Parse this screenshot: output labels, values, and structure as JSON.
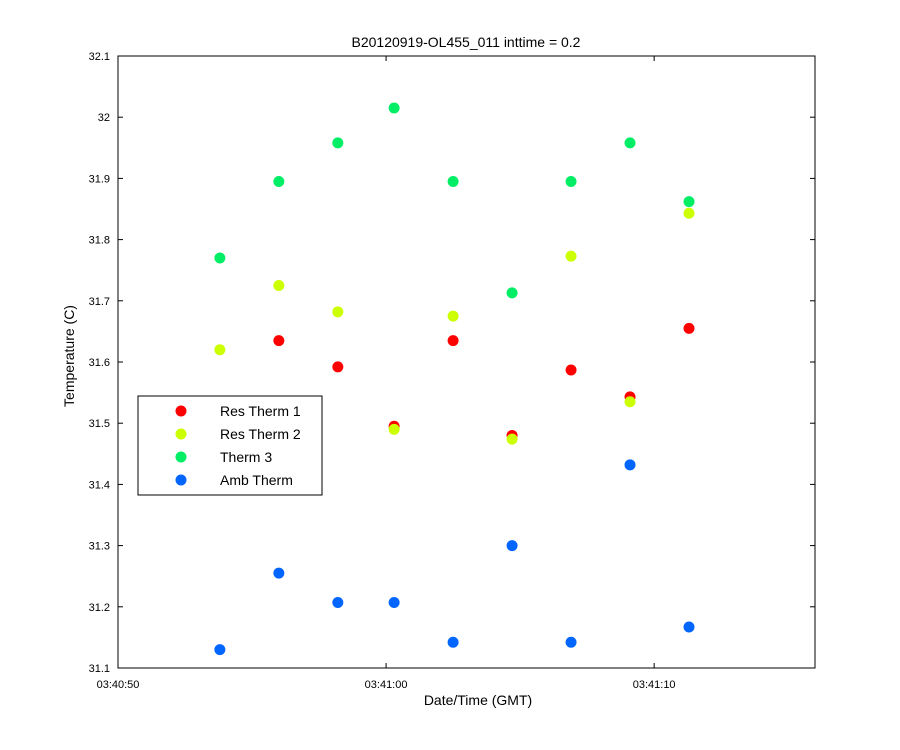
{
  "chart_data": {
    "type": "scatter",
    "title": "B20120919-OL455_011 inttime = 0.2",
    "xlabel": "Date/Time (GMT)",
    "ylabel": "Temperature (C)",
    "x_axis": {
      "unit": "seconds after 03:40:50 GMT",
      "range": [
        0,
        26
      ],
      "ticks": [
        0,
        10,
        20
      ],
      "tick_labels": [
        "03:40:50",
        "03:41:00",
        "03:41:10"
      ]
    },
    "y_axis": {
      "range": [
        31.1,
        32.1
      ],
      "ticks": [
        31.1,
        31.2,
        31.3,
        31.4,
        31.5,
        31.6,
        31.7,
        31.8,
        31.9,
        32.0,
        32.1
      ],
      "tick_labels": [
        "31.1",
        "31.2",
        "31.3",
        "31.4",
        "31.5",
        "31.6",
        "31.7",
        "31.8",
        "31.9",
        "32",
        "32.1"
      ]
    },
    "grid": false,
    "legend_position": "middle-left",
    "series": [
      {
        "name": "Res Therm 1",
        "color": "#ff0000",
        "x": [
          6.0,
          8.2,
          10.3,
          12.5,
          14.7,
          16.9,
          19.1,
          21.3
        ],
        "y": [
          31.635,
          31.592,
          31.495,
          31.635,
          31.48,
          31.587,
          31.543,
          31.655
        ]
      },
      {
        "name": "Res Therm 2",
        "color": "#ccff00",
        "x": [
          3.8,
          6.0,
          8.2,
          10.3,
          12.5,
          14.7,
          16.9,
          19.1,
          21.3
        ],
        "y": [
          31.62,
          31.725,
          31.682,
          31.49,
          31.675,
          31.474,
          31.773,
          31.535,
          31.843
        ]
      },
      {
        "name": "Therm 3",
        "color": "#00ee66",
        "x": [
          3.8,
          6.0,
          8.2,
          10.3,
          12.5,
          14.7,
          16.9,
          19.1,
          21.3
        ],
        "y": [
          31.77,
          31.895,
          31.958,
          32.015,
          31.895,
          31.713,
          31.895,
          31.958,
          31.862
        ]
      },
      {
        "name": "Amb Therm",
        "color": "#0066ff",
        "x": [
          3.8,
          6.0,
          8.2,
          10.3,
          12.5,
          14.7,
          16.9,
          19.1,
          21.3
        ],
        "y": [
          31.13,
          31.255,
          31.207,
          31.207,
          31.142,
          31.3,
          31.142,
          31.432,
          31.167
        ]
      }
    ]
  }
}
